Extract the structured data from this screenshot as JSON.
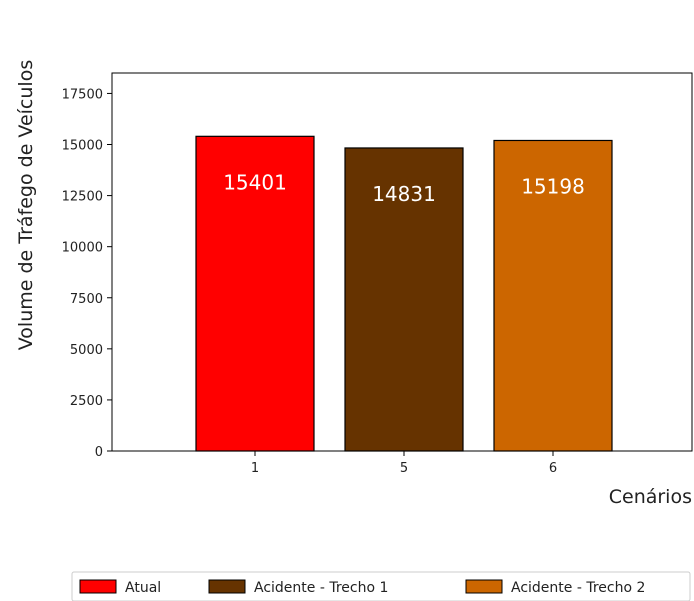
{
  "chart_data": {
    "type": "bar",
    "categories": [
      "1",
      "5",
      "6"
    ],
    "values": [
      15401,
      14831,
      15198
    ],
    "data_labels": [
      "15401",
      "14831",
      "15198"
    ],
    "bar_colors": [
      "#ff0000",
      "#663300",
      "#cc6600"
    ],
    "edge_color": "#000000",
    "title": "",
    "xlabel": "Cenários",
    "ylabel": "Volume de Tráfego de Veículos",
    "ylim": [
      0,
      18500
    ],
    "yticks": [
      0,
      2500,
      5000,
      7500,
      10000,
      12500,
      15000,
      17500
    ],
    "ytick_labels": [
      "0",
      "2500",
      "5000",
      "7500",
      "10000",
      "12500",
      "15000",
      "17500"
    ],
    "grid": false,
    "legend": {
      "placement": "bottom",
      "entries": [
        {
          "label": "Atual",
          "color": "#ff0000"
        },
        {
          "label": "Acidente - Trecho 1",
          "color": "#663300"
        },
        {
          "label": "Acidente - Trecho 2",
          "color": "#cc6600"
        }
      ]
    }
  }
}
